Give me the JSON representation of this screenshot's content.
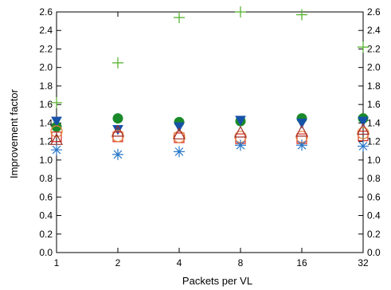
{
  "chart_data": {
    "type": "scatter",
    "title": "",
    "xlabel": "Packets per VL",
    "ylabel": "Improvement factor",
    "x_categories": [
      "1",
      "2",
      "4",
      "8",
      "16",
      "32"
    ],
    "x_scale": "log2",
    "ylim": [
      0.0,
      2.6
    ],
    "y_ticks": [
      "0.0",
      "0.2",
      "0.4",
      "0.6",
      "0.8",
      "1.0",
      "1.2",
      "1.4",
      "1.6",
      "1.8",
      "2.0",
      "2.2",
      "2.4",
      "2.6"
    ],
    "y_axis_mirrored_right": true,
    "grid": false,
    "legend": "none",
    "series": [
      {
        "marker": "plus",
        "color": "#4daf26",
        "values": [
          1.62,
          2.05,
          2.54,
          2.6,
          2.57,
          2.22
        ]
      },
      {
        "marker": "circle-filled",
        "color": "#1a8a2a",
        "values": [
          1.36,
          1.45,
          1.41,
          1.42,
          1.45,
          1.45
        ]
      },
      {
        "marker": "triangle-down-filled",
        "color": "#1652a8",
        "values": [
          1.42,
          1.33,
          1.36,
          1.43,
          1.4,
          1.42
        ]
      },
      {
        "marker": "square-open",
        "color": "#d9281e",
        "values": [
          1.25,
          1.25,
          1.24,
          1.23,
          1.23,
          1.26
        ]
      },
      {
        "marker": "circle-open",
        "color": "#e8833a",
        "values": [
          1.31,
          1.26,
          1.25,
          1.25,
          1.25,
          1.29
        ]
      },
      {
        "marker": "triangle-up-open",
        "color": "#a0302a",
        "values": [
          1.22,
          1.31,
          1.28,
          1.3,
          1.31,
          1.33
        ]
      },
      {
        "marker": "asterisk",
        "color": "#2a78c8",
        "values": [
          1.11,
          1.06,
          1.09,
          1.16,
          1.16,
          1.15
        ]
      }
    ]
  }
}
